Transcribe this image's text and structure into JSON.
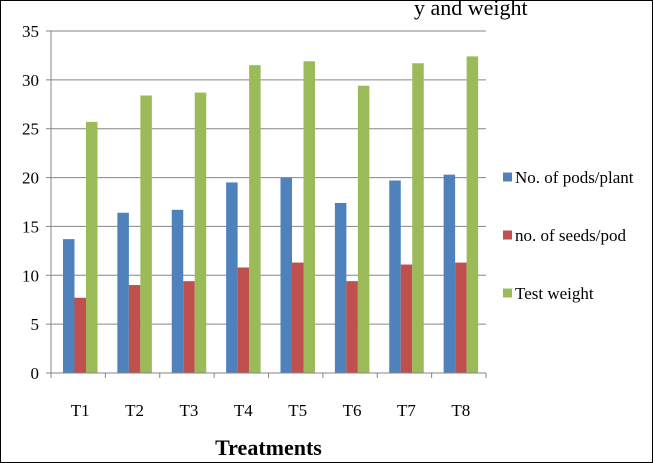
{
  "header": {
    "cutoff_text": "y and weight"
  },
  "chart_data": {
    "type": "bar",
    "categories": [
      "T1",
      "T2",
      "T3",
      "T4",
      "T5",
      "T6",
      "T7",
      "T8"
    ],
    "series": [
      {
        "name": "No. of pods/plant",
        "color": "#4F81BD",
        "values": [
          13.7,
          16.4,
          16.7,
          19.5,
          20.0,
          17.4,
          19.7,
          20.3
        ]
      },
      {
        "name": "no. of seeds/pod",
        "color": "#C0504D",
        "values": [
          7.7,
          9.0,
          9.4,
          10.8,
          11.3,
          9.4,
          11.1,
          11.3
        ]
      },
      {
        "name": "Test weight",
        "color": "#9BBB59",
        "values": [
          25.7,
          28.4,
          28.7,
          31.5,
          31.9,
          29.4,
          31.7,
          32.4
        ]
      }
    ],
    "title": "",
    "xlabel": "Treatments",
    "ylabel": "",
    "ylim": [
      0,
      35
    ],
    "yticks": [
      0,
      5,
      10,
      15,
      20,
      25,
      30,
      35
    ],
    "grid": true,
    "legend": "right"
  }
}
